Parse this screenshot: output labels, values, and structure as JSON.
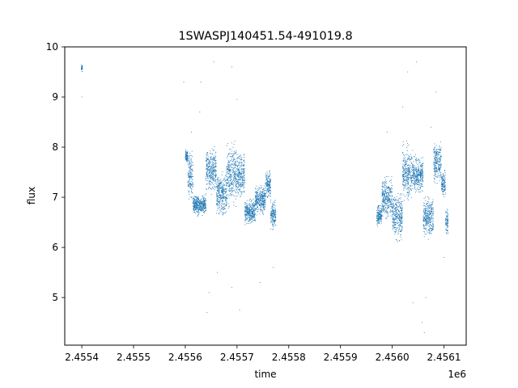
{
  "chart_data": {
    "type": "scatter",
    "title": "1SWASPJ140451.54-491019.8",
    "xlabel": "time",
    "ylabel": "flux",
    "x_offset_label": "1e6",
    "xlim": [
      2455367,
      2456143
    ],
    "ylim": [
      4.05,
      10.0
    ],
    "x_ticks": [
      2455400,
      2455500,
      2455600,
      2455700,
      2455800,
      2455900,
      2456000,
      2456100
    ],
    "x_tick_labels": [
      "2.4554",
      "2.4555",
      "2.4556",
      "2.4557",
      "2.4558",
      "2.4559",
      "2.4560",
      "2.4561"
    ],
    "y_ticks": [
      5,
      6,
      7,
      8,
      9,
      10
    ],
    "y_tick_labels": [
      "5",
      "6",
      "7",
      "8",
      "9",
      "10"
    ],
    "grid": false,
    "marker_color": "#1f77b4",
    "segments": [
      {
        "x": [
          2455399,
          2455401
        ],
        "y": [
          9.45,
          9.7
        ]
      },
      {
        "x": [
          2455600,
          2455605
        ],
        "y": [
          7.65,
          8.0
        ]
      },
      {
        "x": [
          2455605,
          2455615
        ],
        "y": [
          6.85,
          8.0
        ]
      },
      {
        "x": [
          2455615,
          2455640
        ],
        "y": [
          6.6,
          7.1
        ]
      },
      {
        "x": [
          2455640,
          2455660
        ],
        "y": [
          7.0,
          8.1
        ]
      },
      {
        "x": [
          2455660,
          2455680
        ],
        "y": [
          6.5,
          7.6
        ]
      },
      {
        "x": [
          2455680,
          2455700
        ],
        "y": [
          6.7,
          8.2
        ]
      },
      {
        "x": [
          2455700,
          2455715
        ],
        "y": [
          6.9,
          8.0
        ]
      },
      {
        "x": [
          2455715,
          2455735
        ],
        "y": [
          6.4,
          7.0
        ]
      },
      {
        "x": [
          2455735,
          2455755
        ],
        "y": [
          6.6,
          7.3
        ]
      },
      {
        "x": [
          2455755,
          2455765
        ],
        "y": [
          6.9,
          7.6
        ]
      },
      {
        "x": [
          2455765,
          2455775
        ],
        "y": [
          6.3,
          7.0
        ]
      },
      {
        "x": [
          2455970,
          2455980
        ],
        "y": [
          6.4,
          6.9
        ]
      },
      {
        "x": [
          2455980,
          2456000
        ],
        "y": [
          6.5,
          7.5
        ]
      },
      {
        "x": [
          2456000,
          2456020
        ],
        "y": [
          6.0,
          7.2
        ]
      },
      {
        "x": [
          2456020,
          2456040
        ],
        "y": [
          6.8,
          8.2
        ]
      },
      {
        "x": [
          2456040,
          2456060
        ],
        "y": [
          7.0,
          7.9
        ]
      },
      {
        "x": [
          2456060,
          2456080
        ],
        "y": [
          6.1,
          7.1
        ]
      },
      {
        "x": [
          2456080,
          2456095
        ],
        "y": [
          7.2,
          8.2
        ]
      },
      {
        "x": [
          2456095,
          2456103
        ],
        "y": [
          6.9,
          7.6
        ]
      },
      {
        "x": [
          2456103,
          2456108
        ],
        "y": [
          6.2,
          6.8
        ]
      }
    ],
    "outliers": [
      {
        "x": 2455400,
        "y": 9.0
      },
      {
        "x": 2455597,
        "y": 9.3
      },
      {
        "x": 2455612,
        "y": 8.3
      },
      {
        "x": 2455628,
        "y": 8.7
      },
      {
        "x": 2455630,
        "y": 9.3
      },
      {
        "x": 2455642,
        "y": 4.7
      },
      {
        "x": 2455646,
        "y": 5.1
      },
      {
        "x": 2455655,
        "y": 9.7
      },
      {
        "x": 2455662,
        "y": 5.5
      },
      {
        "x": 2455690,
        "y": 9.6
      },
      {
        "x": 2455690,
        "y": 5.2
      },
      {
        "x": 2455700,
        "y": 8.95
      },
      {
        "x": 2455705,
        "y": 4.75
      },
      {
        "x": 2455745,
        "y": 5.3
      },
      {
        "x": 2455770,
        "y": 5.6
      },
      {
        "x": 2455990,
        "y": 8.3
      },
      {
        "x": 2456020,
        "y": 8.8
      },
      {
        "x": 2456030,
        "y": 9.5
      },
      {
        "x": 2456040,
        "y": 4.9
      },
      {
        "x": 2456047,
        "y": 9.7
      },
      {
        "x": 2456058,
        "y": 4.5
      },
      {
        "x": 2456062,
        "y": 4.3
      },
      {
        "x": 2456065,
        "y": 5.0
      },
      {
        "x": 2456075,
        "y": 8.4
      },
      {
        "x": 2456085,
        "y": 9.1
      },
      {
        "x": 2456100,
        "y": 5.8
      }
    ]
  }
}
